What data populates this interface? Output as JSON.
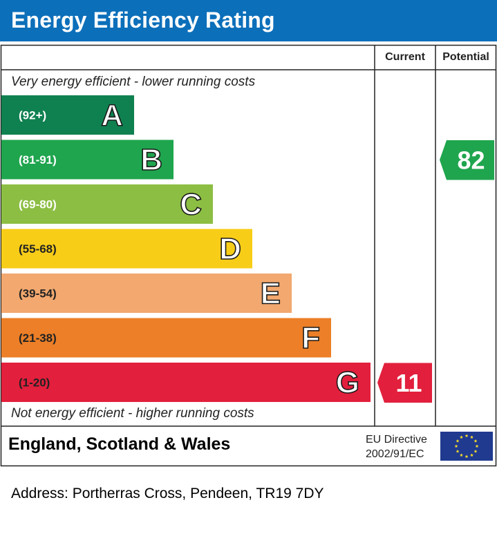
{
  "header": {
    "title": "Energy Efficiency Rating"
  },
  "columns": {
    "current": "Current",
    "potential": "Potential"
  },
  "notes": {
    "top": "Very energy efficient - lower running costs",
    "bottom": "Not energy efficient - higher running costs"
  },
  "footer": {
    "region": "England, Scotland & Wales",
    "directive_line1": "EU Directive",
    "directive_line2": "2002/91/EC"
  },
  "address": "Address: Portherras Cross, Pendeen, TR19 7DY",
  "chart_data": {
    "type": "bar",
    "title": "Energy Efficiency Rating",
    "bands": [
      {
        "letter": "A",
        "range": "(92+)",
        "min": 92,
        "max": 100,
        "color": "#0f8150"
      },
      {
        "letter": "B",
        "range": "(81-91)",
        "min": 81,
        "max": 91,
        "color": "#1fa54e"
      },
      {
        "letter": "C",
        "range": "(69-80)",
        "min": 69,
        "max": 80,
        "color": "#8cbe43"
      },
      {
        "letter": "D",
        "range": "(55-68)",
        "min": 55,
        "max": 68,
        "color": "#f8cd18"
      },
      {
        "letter": "E",
        "range": "(39-54)",
        "min": 39,
        "max": 54,
        "color": "#f2a86e"
      },
      {
        "letter": "F",
        "range": "(21-38)",
        "min": 21,
        "max": 38,
        "color": "#ec7f27"
      },
      {
        "letter": "G",
        "range": "(1-20)",
        "min": 1,
        "max": 20,
        "color": "#e21f3c"
      }
    ],
    "current": {
      "value": 11,
      "band": "G",
      "color": "#e21f3c"
    },
    "potential": {
      "value": 82,
      "band": "B",
      "color": "#1fa54e"
    }
  }
}
